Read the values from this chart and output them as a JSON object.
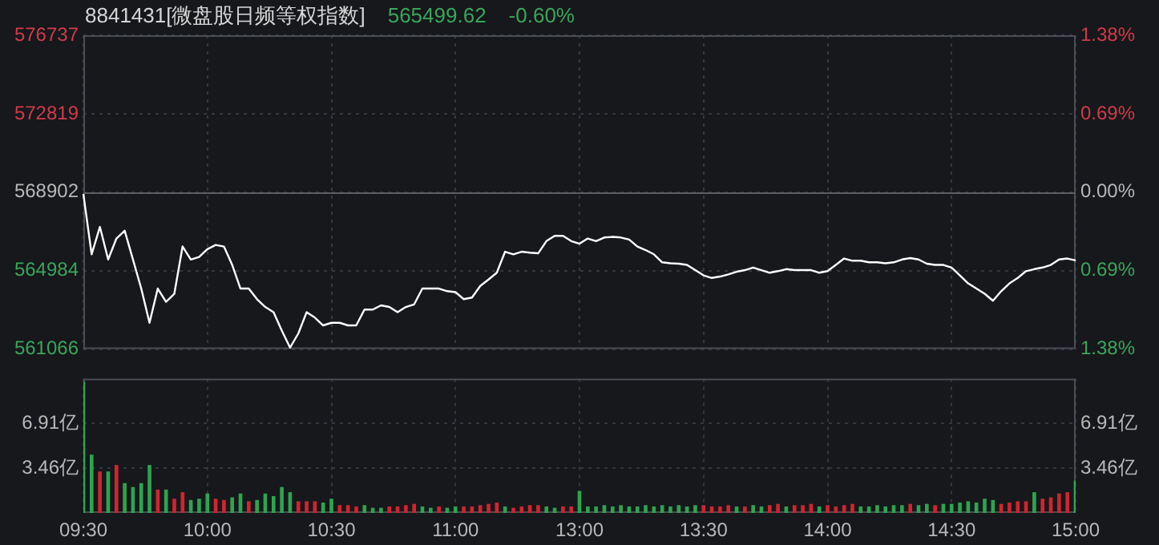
{
  "chart_data": [
    {
      "type": "line",
      "title": "8841431[微盘股日频等权指数]",
      "annotations": [
        "565499.62",
        "-0.60%"
      ],
      "categories": [
        null,
        null,
        null,
        null,
        null,
        null,
        null,
        null,
        null,
        null,
        null,
        null,
        null,
        null,
        null,
        null,
        null,
        null,
        null,
        null,
        null,
        null,
        null,
        null,
        null,
        null,
        null,
        null,
        null,
        null,
        null,
        null,
        null,
        null,
        null,
        null,
        null,
        null,
        null,
        null,
        null,
        null,
        null,
        null,
        null,
        null,
        null,
        null,
        null,
        null,
        null,
        null,
        null,
        null,
        null,
        null,
        null,
        null,
        null,
        null,
        null,
        null,
        null,
        null,
        null,
        null,
        null,
        null,
        null,
        null,
        null,
        null,
        null,
        null,
        null,
        null,
        null,
        null,
        null,
        null,
        null,
        null,
        null,
        null,
        null,
        null,
        null,
        null,
        null,
        null,
        null,
        null,
        null,
        null,
        null,
        null,
        null,
        null,
        null,
        null,
        null,
        null,
        null,
        null,
        null,
        null,
        null,
        null,
        null,
        null,
        null,
        null,
        null,
        null,
        null,
        null,
        null,
        null,
        null,
        null,
        null
      ],
      "series": [
        {
          "color": "#ffffff",
          "values": [
            568820,
            565800,
            567170,
            565540,
            566590,
            566980,
            565540,
            564090,
            562380,
            564090,
            563430,
            563830,
            566190,
            565540,
            565670,
            566060,
            566270,
            566190,
            565270,
            564090,
            564090,
            563560,
            563170,
            562910,
            561990,
            561140,
            561850,
            562910,
            562640,
            562250,
            562380,
            562380,
            562250,
            562250,
            563040,
            563040,
            563250,
            563170,
            562910,
            563170,
            563300,
            564090,
            564090,
            564090,
            563960,
            563910,
            563560,
            563640,
            564220,
            564540,
            564880,
            565930,
            565800,
            565930,
            565880,
            565850,
            566460,
            566720,
            566720,
            566460,
            566330,
            566590,
            566460,
            566640,
            566670,
            566640,
            566540,
            566190,
            566010,
            565800,
            565400,
            565350,
            565330,
            565270,
            565010,
            564750,
            564620,
            564690,
            564800,
            564930,
            565010,
            565140,
            565010,
            564880,
            564960,
            565060,
            565010,
            565010,
            565010,
            564880,
            564960,
            565270,
            565590,
            565480,
            565480,
            565400,
            565400,
            565350,
            565400,
            565540,
            565610,
            565540,
            565330,
            565270,
            565270,
            565140,
            564750,
            564350,
            564090,
            563830,
            563480,
            563960,
            564350,
            564620,
            564960,
            565060,
            565140,
            565270,
            565540,
            565590,
            565500
          ]
        }
      ],
      "ylim": [
        561066,
        576737
      ],
      "yticks": [
        561066,
        564984,
        568902,
        572819,
        576737
      ],
      "y2lim": [
        -1.38,
        1.38
      ],
      "y2ticks": [
        {
          "value": -1.38,
          "label": "1.38%"
        },
        {
          "value": -0.69,
          "label": "0.69%"
        },
        {
          "value": 0,
          "label": "0.00%"
        },
        {
          "value": 0.69,
          "label": "0.69%"
        },
        {
          "value": 1.38,
          "label": "1.38%"
        }
      ],
      "ref_lines": [
        {
          "axis": "y",
          "value": 568902
        }
      ],
      "grid": true,
      "legend": false,
      "tick_labels": "y"
    },
    {
      "type": "bar",
      "categories": [
        "09:30",
        null,
        null,
        null,
        null,
        null,
        null,
        null,
        null,
        null,
        null,
        null,
        null,
        null,
        null,
        "10:00",
        null,
        null,
        null,
        null,
        null,
        null,
        null,
        null,
        null,
        null,
        null,
        null,
        null,
        null,
        "10:30",
        null,
        null,
        null,
        null,
        null,
        null,
        null,
        null,
        null,
        null,
        null,
        null,
        null,
        null,
        "11:00",
        null,
        null,
        null,
        null,
        null,
        null,
        null,
        null,
        null,
        null,
        null,
        null,
        null,
        null,
        "13:00",
        null,
        null,
        null,
        null,
        null,
        null,
        null,
        null,
        null,
        null,
        null,
        null,
        null,
        null,
        "13:30",
        null,
        null,
        null,
        null,
        null,
        null,
        null,
        null,
        null,
        null,
        null,
        null,
        null,
        null,
        "14:00",
        null,
        null,
        null,
        null,
        null,
        null,
        null,
        null,
        null,
        null,
        null,
        null,
        null,
        null,
        "14:30",
        null,
        null,
        null,
        null,
        null,
        null,
        null,
        null,
        null,
        null,
        null,
        null,
        null,
        null,
        "15:00"
      ],
      "series": [
        {
          "values": [
            10.1,
            4.5,
            3.2,
            3.2,
            3.7,
            2.3,
            2.0,
            2.3,
            3.7,
            1.8,
            1.8,
            1.1,
            1.6,
            1.0,
            1.1,
            1.5,
            1.1,
            1.0,
            1.2,
            1.5,
            0.9,
            1.0,
            1.5,
            1.3,
            2.0,
            1.6,
            0.9,
            0.9,
            0.9,
            0.8,
            1.1,
            0.6,
            0.6,
            0.5,
            0.6,
            0.4,
            0.4,
            0.5,
            0.5,
            0.6,
            0.7,
            0.5,
            0.4,
            0.5,
            0.4,
            0.5,
            0.5,
            0.5,
            0.6,
            0.7,
            0.8,
            0.5,
            0.4,
            0.5,
            0.6,
            0.6,
            0.5,
            0.4,
            0.5,
            0.5,
            1.7,
            0.5,
            0.5,
            0.6,
            0.5,
            0.6,
            0.5,
            0.5,
            0.6,
            0.5,
            0.6,
            0.5,
            0.6,
            0.5,
            0.6,
            0.6,
            0.5,
            0.5,
            0.6,
            0.5,
            0.5,
            0.6,
            0.5,
            0.6,
            0.7,
            0.5,
            0.6,
            0.6,
            0.7,
            0.5,
            0.6,
            0.5,
            0.6,
            0.7,
            0.5,
            0.5,
            0.6,
            0.5,
            0.6,
            0.6,
            0.7,
            0.6,
            0.7,
            0.6,
            0.7,
            0.7,
            0.8,
            0.9,
            0.8,
            1.1,
            1.0,
            0.7,
            0.8,
            0.9,
            0.9,
            1.6,
            1.1,
            1.2,
            1.5,
            1.6,
            2.5
          ],
          "colors": [
            "#2ea44f",
            "#2ea44f",
            "#d0252f",
            "#2ea44f",
            "#d0252f",
            "#2ea44f",
            "#2ea44f",
            "#2ea44f",
            "#2ea44f",
            "#d0252f",
            "#2ea44f",
            "#d0252f",
            "#d0252f",
            "#2ea44f",
            "#2ea44f",
            "#2ea44f",
            "#d0252f",
            "#d0252f",
            "#2ea44f",
            "#2ea44f",
            "#d0252f",
            "#2ea44f",
            "#2ea44f",
            "#2ea44f",
            "#2ea44f",
            "#2ea44f",
            "#d0252f",
            "#d0252f",
            "#d0252f",
            "#2ea44f",
            "#2ea44f",
            "#d0252f",
            "#d0252f",
            "#d0252f",
            "#2ea44f",
            "#2ea44f",
            "#2ea44f",
            "#d0252f",
            "#d0252f",
            "#d0252f",
            "#d0252f",
            "#2ea44f",
            "#2ea44f",
            "#d0252f",
            "#2ea44f",
            "#2ea44f",
            "#d0252f",
            "#d0252f",
            "#d0252f",
            "#d0252f",
            "#d0252f",
            "#2ea44f",
            "#d0252f",
            "#d0252f",
            "#d0252f",
            "#d0252f",
            "#2ea44f",
            "#2ea44f",
            "#d0252f",
            "#d0252f",
            "#2ea44f",
            "#2ea44f",
            "#2ea44f",
            "#2ea44f",
            "#2ea44f",
            "#2ea44f",
            "#2ea44f",
            "#2ea44f",
            "#2ea44f",
            "#2ea44f",
            "#2ea44f",
            "#2ea44f",
            "#2ea44f",
            "#2ea44f",
            "#2ea44f",
            "#d0252f",
            "#d0252f",
            "#d0252f",
            "#d0252f",
            "#2ea44f",
            "#d0252f",
            "#2ea44f",
            "#2ea44f",
            "#d0252f",
            "#d0252f",
            "#2ea44f",
            "#d0252f",
            "#d0252f",
            "#d0252f",
            "#2ea44f",
            "#d0252f",
            "#d0252f",
            "#d0252f",
            "#d0252f",
            "#2ea44f",
            "#2ea44f",
            "#2ea44f",
            "#2ea44f",
            "#2ea44f",
            "#2ea44f",
            "#d0252f",
            "#2ea44f",
            "#2ea44f",
            "#d0252f",
            "#2ea44f",
            "#2ea44f",
            "#2ea44f",
            "#2ea44f",
            "#2ea44f",
            "#2ea44f",
            "#2ea44f",
            "#d0252f",
            "#d0252f",
            "#d0252f",
            "#d0252f",
            "#2ea44f",
            "#d0252f",
            "#d0252f",
            "#d0252f",
            "#d0252f",
            "#2ea44f"
          ]
        }
      ],
      "ylim": [
        0,
        10.36
      ],
      "yticks": [
        {
          "value": 3.46,
          "label": "3.46亿"
        },
        {
          "value": 6.91,
          "label": "6.91亿"
        }
      ],
      "y2lim": [
        0,
        10.36
      ],
      "y2ticks": [
        {
          "value": 3.46,
          "label": "3.46亿"
        },
        {
          "value": 6.91,
          "label": "6.91亿"
        }
      ],
      "grid": true,
      "legend": false
    }
  ]
}
